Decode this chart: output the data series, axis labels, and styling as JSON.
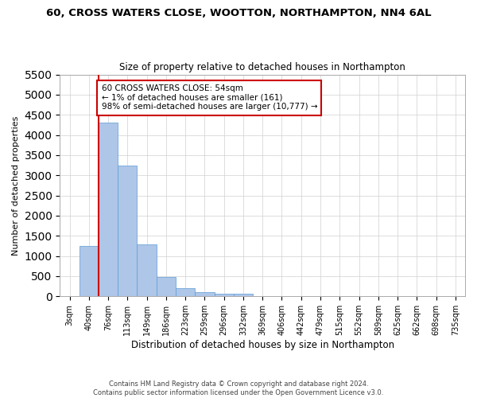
{
  "title": "60, CROSS WATERS CLOSE, WOOTTON, NORTHAMPTON, NN4 6AL",
  "subtitle": "Size of property relative to detached houses in Northampton",
  "xlabel": "Distribution of detached houses by size in Northampton",
  "ylabel": "Number of detached properties",
  "footer_line1": "Contains HM Land Registry data © Crown copyright and database right 2024.",
  "footer_line2": "Contains public sector information licensed under the Open Government Licence v3.0.",
  "annotation_line1": "60 CROSS WATERS CLOSE: 54sqm",
  "annotation_line2": "← 1% of detached houses are smaller (161)",
  "annotation_line3": "98% of semi-detached houses are larger (10,777) →",
  "bar_color": "#aec6e8",
  "bar_edge_color": "#5b9bd5",
  "redline_color": "#cc0000",
  "annotation_box_color": "#cc0000",
  "categories": [
    "3sqm",
    "40sqm",
    "76sqm",
    "113sqm",
    "149sqm",
    "186sqm",
    "223sqm",
    "259sqm",
    "296sqm",
    "332sqm",
    "369sqm",
    "406sqm",
    "442sqm",
    "479sqm",
    "515sqm",
    "552sqm",
    "589sqm",
    "625sqm",
    "662sqm",
    "698sqm",
    "735sqm"
  ],
  "values": [
    0,
    1250,
    4300,
    3250,
    1280,
    480,
    200,
    100,
    70,
    60,
    0,
    0,
    0,
    0,
    0,
    0,
    0,
    0,
    0,
    0,
    0
  ],
  "ylim": [
    0,
    5500
  ],
  "yticks": [
    0,
    500,
    1000,
    1500,
    2000,
    2500,
    3000,
    3500,
    4000,
    4500,
    5000,
    5500
  ],
  "redline_x": 1.5,
  "background_color": "#ffffff",
  "grid_color": "#d0d0d0"
}
